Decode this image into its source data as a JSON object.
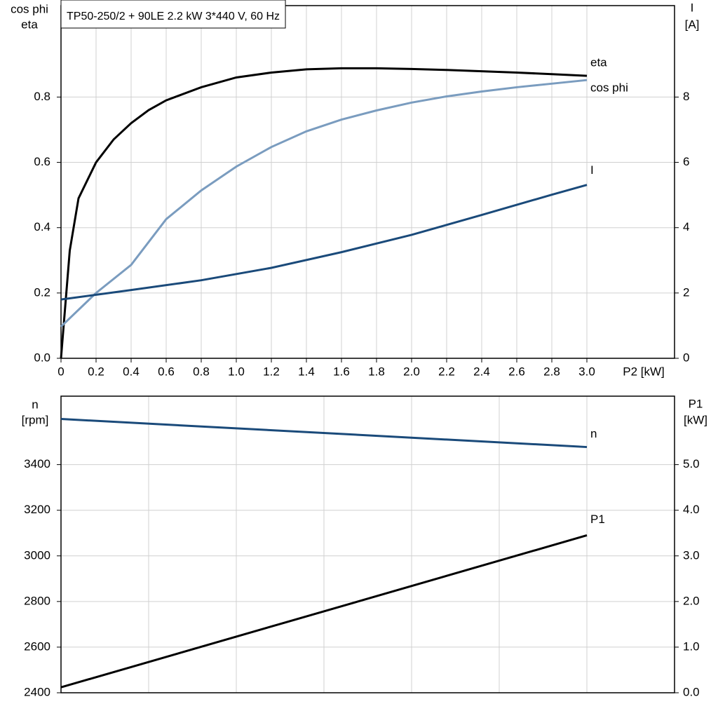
{
  "chart_data": [
    {
      "type": "line",
      "title": "TP50-250/2 + 90LE   2.2 kW   3*440 V, 60 Hz",
      "ylabel": [
        "cos phi",
        "eta"
      ],
      "y2label": [
        "I",
        "[A]"
      ],
      "xlabel": "P2 [kW]",
      "xlim": [
        0,
        3.5
      ],
      "xticks": [
        {
          "value": 0,
          "label": "0"
        },
        0.2,
        0.4,
        0.6,
        0.8,
        {
          "value": 1,
          "label": "1.0"
        },
        1.2,
        1.4,
        1.6,
        1.8,
        {
          "value": 2,
          "label": "2.0"
        },
        2.2,
        2.4,
        2.6,
        2.8,
        {
          "value": 3,
          "label": "3.0"
        }
      ],
      "ylim": [
        0,
        1.08
      ],
      "yticks": [
        {
          "value": 0,
          "label": "0.0"
        },
        0.2,
        0.4,
        0.6,
        0.8
      ],
      "y2lim": [
        0,
        10.8
      ],
      "y2ticks": [
        0,
        2,
        4,
        6,
        8
      ],
      "grid": true,
      "series": [
        {
          "name": "eta",
          "color": "#000000",
          "x": [
            0,
            0.05,
            0.1,
            0.2,
            0.3,
            0.4,
            0.5,
            0.6,
            0.8,
            1.0,
            1.2,
            1.4,
            1.6,
            1.8,
            2.0,
            2.2,
            2.4,
            2.6,
            2.8,
            3.0
          ],
          "values": [
            0,
            0.33,
            0.49,
            0.6,
            0.67,
            0.72,
            0.76,
            0.79,
            0.83,
            0.86,
            0.875,
            0.885,
            0.888,
            0.888,
            0.886,
            0.883,
            0.879,
            0.875,
            0.87,
            0.865
          ]
        },
        {
          "name": "cos phi",
          "color": "#7a9cbf",
          "x": [
            0,
            0.2,
            0.4,
            0.6,
            0.8,
            1.0,
            1.2,
            1.4,
            1.6,
            1.8,
            2.0,
            2.2,
            2.4,
            2.6,
            2.8,
            3.0
          ],
          "values": [
            0.097,
            0.2,
            0.286,
            0.426,
            0.514,
            0.587,
            0.647,
            0.695,
            0.731,
            0.759,
            0.783,
            0.802,
            0.817,
            0.83,
            0.841,
            0.852
          ]
        },
        {
          "name": "I",
          "color": "#1a4a7a",
          "axis": "y2",
          "x": [
            0,
            0.4,
            0.8,
            1.2,
            1.6,
            2.0,
            2.4,
            2.8,
            3.0
          ],
          "values": [
            1.8,
            2.09,
            2.39,
            2.77,
            3.25,
            3.78,
            4.39,
            5.01,
            5.31
          ]
        }
      ]
    },
    {
      "type": "line",
      "ylabel": [
        "n",
        "[rpm]"
      ],
      "y2label": [
        "P1",
        "[kW]"
      ],
      "xlim": [
        0,
        3.5
      ],
      "xticks": [
        0,
        0.5,
        1,
        1.5,
        2,
        2.5,
        3,
        3.5
      ],
      "xtick_labels": false,
      "ylim": [
        2400,
        3700
      ],
      "yticks": [
        2400,
        2600,
        2800,
        3000,
        3200,
        3400
      ],
      "y2lim": [
        0,
        6.5
      ],
      "y2ticks": [
        {
          "value": 0,
          "label": "0.0"
        },
        {
          "value": 1,
          "label": "1.0"
        },
        {
          "value": 2,
          "label": "2.0"
        },
        {
          "value": 3,
          "label": "3.0"
        },
        {
          "value": 4,
          "label": "4.0"
        },
        {
          "value": 5,
          "label": "5.0"
        }
      ],
      "grid": true,
      "series": [
        {
          "name": "n",
          "color": "#1a4a7a",
          "x": [
            0,
            3.0
          ],
          "values": [
            3600,
            3477
          ]
        },
        {
          "name": "P1",
          "color": "#000000",
          "axis": "y2",
          "x": [
            0,
            3.0
          ],
          "values": [
            0.12,
            3.45
          ]
        }
      ]
    }
  ]
}
